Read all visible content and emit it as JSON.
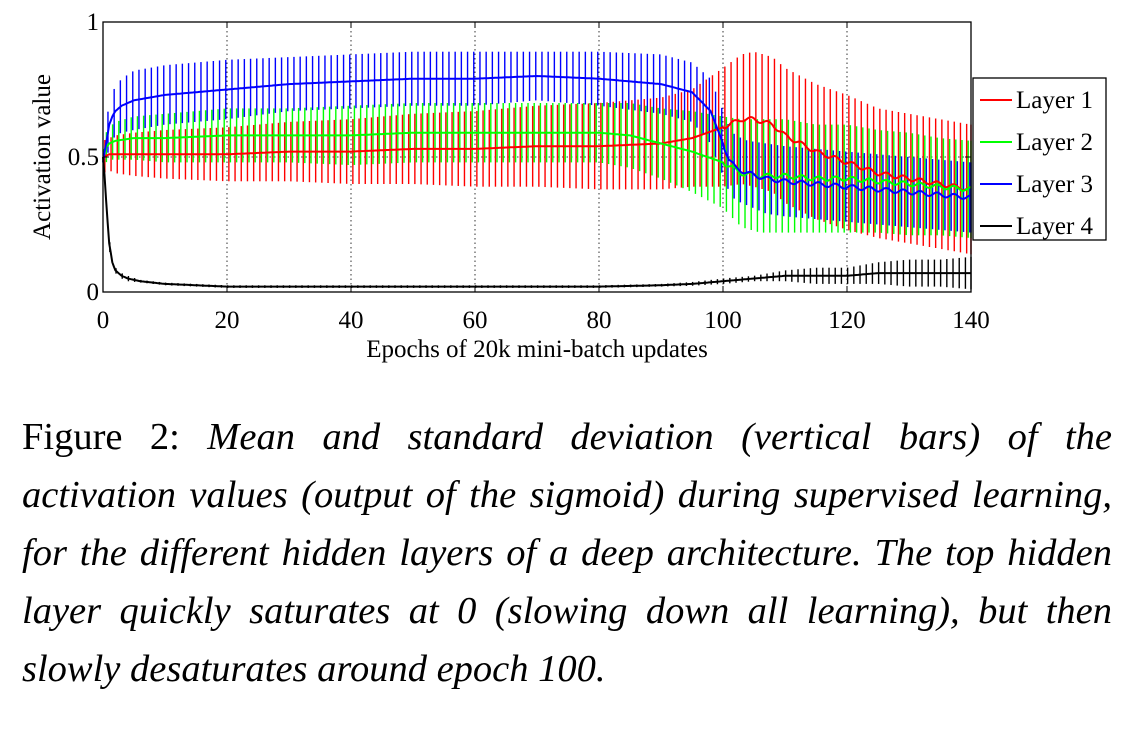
{
  "chart_data": {
    "type": "line",
    "xlabel": "Epochs of 20k mini-batch updates",
    "ylabel": "Activation value",
    "xlim": [
      0,
      140
    ],
    "ylim": [
      0,
      1
    ],
    "xticks": [
      0,
      20,
      40,
      60,
      80,
      100,
      120,
      140
    ],
    "xtick_labels": [
      "0",
      "20",
      "40",
      "60",
      "80",
      "100",
      "120",
      "140"
    ],
    "yticks": [
      0,
      0.5,
      1
    ],
    "ytick_labels": [
      "0",
      "0.5",
      "1"
    ],
    "grid": true,
    "error_bars": "vertical bars show standard deviation",
    "legend_position": "right",
    "series": [
      {
        "name": "Layer 1",
        "color": "#ff0000",
        "x": [
          0,
          1,
          2,
          5,
          10,
          20,
          30,
          40,
          50,
          60,
          70,
          80,
          90,
          95,
          100,
          103,
          105,
          108,
          110,
          115,
          120,
          125,
          130,
          135,
          140
        ],
        "mean": [
          0.5,
          0.51,
          0.51,
          0.51,
          0.51,
          0.51,
          0.52,
          0.52,
          0.53,
          0.53,
          0.54,
          0.54,
          0.55,
          0.57,
          0.61,
          0.64,
          0.64,
          0.62,
          0.58,
          0.52,
          0.48,
          0.44,
          0.42,
          0.4,
          0.38
        ],
        "std": [
          0.06,
          0.06,
          0.07,
          0.08,
          0.09,
          0.1,
          0.11,
          0.12,
          0.13,
          0.14,
          0.15,
          0.16,
          0.17,
          0.18,
          0.22,
          0.24,
          0.25,
          0.25,
          0.25,
          0.25,
          0.25,
          0.24,
          0.24,
          0.24,
          0.24
        ]
      },
      {
        "name": "Layer 2",
        "color": "#00ff00",
        "x": [
          0,
          1,
          2,
          5,
          10,
          20,
          30,
          40,
          50,
          60,
          70,
          80,
          85,
          90,
          95,
          100,
          103,
          106,
          110,
          115,
          120,
          125,
          130,
          135,
          140
        ],
        "mean": [
          0.52,
          0.55,
          0.56,
          0.57,
          0.57,
          0.58,
          0.58,
          0.58,
          0.59,
          0.59,
          0.59,
          0.59,
          0.58,
          0.55,
          0.52,
          0.48,
          0.44,
          0.43,
          0.43,
          0.42,
          0.42,
          0.41,
          0.4,
          0.39,
          0.38
        ],
        "std": [
          0.05,
          0.06,
          0.07,
          0.08,
          0.09,
          0.1,
          0.1,
          0.11,
          0.11,
          0.11,
          0.11,
          0.11,
          0.12,
          0.13,
          0.15,
          0.17,
          0.2,
          0.21,
          0.21,
          0.2,
          0.2,
          0.19,
          0.19,
          0.18,
          0.18
        ]
      },
      {
        "name": "Layer 3",
        "color": "#0000ff",
        "x": [
          0,
          0.5,
          1,
          1.5,
          2,
          3,
          5,
          10,
          20,
          30,
          40,
          50,
          60,
          70,
          80,
          90,
          95,
          98,
          100,
          101,
          102,
          104,
          107,
          110,
          115,
          120,
          125,
          130,
          135,
          140
        ],
        "mean": [
          0.48,
          0.55,
          0.62,
          0.65,
          0.67,
          0.69,
          0.71,
          0.73,
          0.75,
          0.77,
          0.78,
          0.79,
          0.79,
          0.8,
          0.79,
          0.77,
          0.74,
          0.67,
          0.55,
          0.49,
          0.46,
          0.44,
          0.42,
          0.41,
          0.4,
          0.39,
          0.38,
          0.37,
          0.36,
          0.35
        ],
        "std": [
          0.06,
          0.07,
          0.08,
          0.09,
          0.09,
          0.1,
          0.11,
          0.11,
          0.11,
          0.1,
          0.1,
          0.1,
          0.1,
          0.09,
          0.1,
          0.11,
          0.11,
          0.12,
          0.12,
          0.12,
          0.12,
          0.12,
          0.13,
          0.13,
          0.13,
          0.13,
          0.13,
          0.13,
          0.13,
          0.13
        ]
      },
      {
        "name": "Layer 4",
        "color": "#000000",
        "x": [
          0,
          0.3,
          0.6,
          1,
          1.5,
          2,
          3,
          4,
          6,
          10,
          15,
          20,
          30,
          40,
          60,
          80,
          90,
          95,
          100,
          105,
          110,
          115,
          120,
          125,
          130,
          135,
          140
        ],
        "mean": [
          0.5,
          0.42,
          0.3,
          0.18,
          0.11,
          0.08,
          0.06,
          0.05,
          0.04,
          0.03,
          0.025,
          0.02,
          0.02,
          0.02,
          0.02,
          0.02,
          0.025,
          0.03,
          0.04,
          0.05,
          0.06,
          0.06,
          0.06,
          0.07,
          0.07,
          0.07,
          0.07
        ],
        "std": [
          0.02,
          0.02,
          0.02,
          0.02,
          0.01,
          0.01,
          0.01,
          0.01,
          0.005,
          0.005,
          0.005,
          0.005,
          0.005,
          0.005,
          0.005,
          0.005,
          0.005,
          0.007,
          0.01,
          0.01,
          0.02,
          0.03,
          0.03,
          0.04,
          0.05,
          0.05,
          0.06
        ]
      }
    ]
  },
  "caption": {
    "label": "Figure 2: ",
    "text": "Mean and standard deviation (vertical bars) of the activation values (output of the sigmoid) during supervised learning, for the different hidden layers of a deep architecture. The top hidden layer quickly saturates at 0 (slowing down all learning), but then slowly desaturates around epoch 100."
  }
}
